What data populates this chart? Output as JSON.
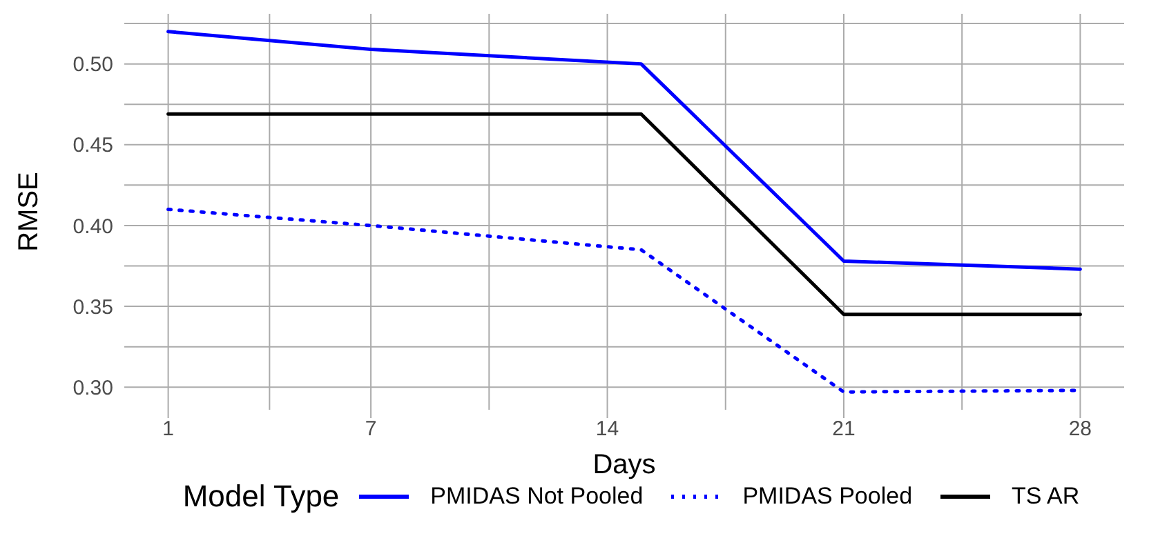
{
  "chart_data": {
    "type": "line",
    "xlabel": "Days",
    "ylabel": "RMSE",
    "legend_title": "Model Type",
    "legend": "bottom",
    "grid": true,
    "marker": "none",
    "x": [
      1,
      7,
      15,
      21,
      28
    ],
    "xlim": [
      -0.3,
      29.3
    ],
    "xticks": [
      1,
      7,
      14,
      21,
      28
    ],
    "ylim": [
      0.286,
      0.531
    ],
    "yticks": [
      {
        "value": 0.3,
        "label": "0.30"
      },
      0.35,
      {
        "value": 0.4,
        "label": "0.40"
      },
      0.45,
      {
        "value": 0.5,
        "label": "0.50"
      }
    ],
    "series": [
      {
        "name": "PMIDAS Not Pooled",
        "color": "#0000ff",
        "line_style": "solid",
        "values": [
          0.52,
          0.509,
          0.5,
          0.378,
          0.373
        ]
      },
      {
        "name": "PMIDAS Pooled",
        "color": "#0000ff",
        "line_style": "dotted",
        "values": [
          0.41,
          0.4,
          0.385,
          0.297,
          0.298
        ]
      },
      {
        "name": "TS AR",
        "color": "#000000",
        "line_style": "solid",
        "values": [
          0.469,
          0.469,
          0.469,
          0.345,
          0.345
        ]
      }
    ]
  }
}
